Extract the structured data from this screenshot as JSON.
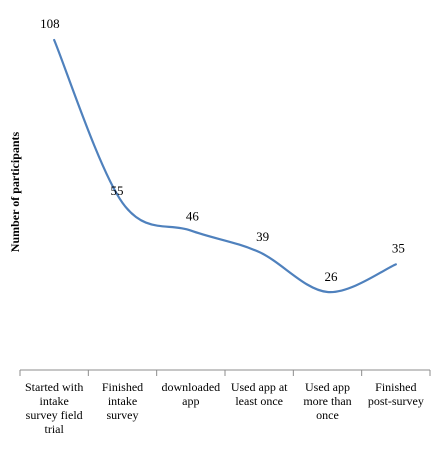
{
  "chart_data": {
    "type": "line",
    "title": "",
    "xlabel": "",
    "ylabel": "Number of participants",
    "ylim": [
      0,
      120
    ],
    "grid": false,
    "legend": "none",
    "smooth": true,
    "categories": [
      [
        "Started with",
        "intake",
        "survey field",
        "trial"
      ],
      [
        "Finished",
        "intake",
        "survey"
      ],
      [
        "downloaded",
        "app"
      ],
      [
        "Used app at",
        "least once"
      ],
      [
        "Used app",
        "more than",
        "once"
      ],
      [
        "Finished",
        "post-survey"
      ]
    ],
    "series": [
      {
        "values": [
          108,
          55,
          46,
          39,
          26,
          35
        ],
        "color": "#4F81BD"
      }
    ],
    "data_labels": [
      "108",
      "55",
      "46",
      "39",
      "26",
      "35"
    ]
  }
}
